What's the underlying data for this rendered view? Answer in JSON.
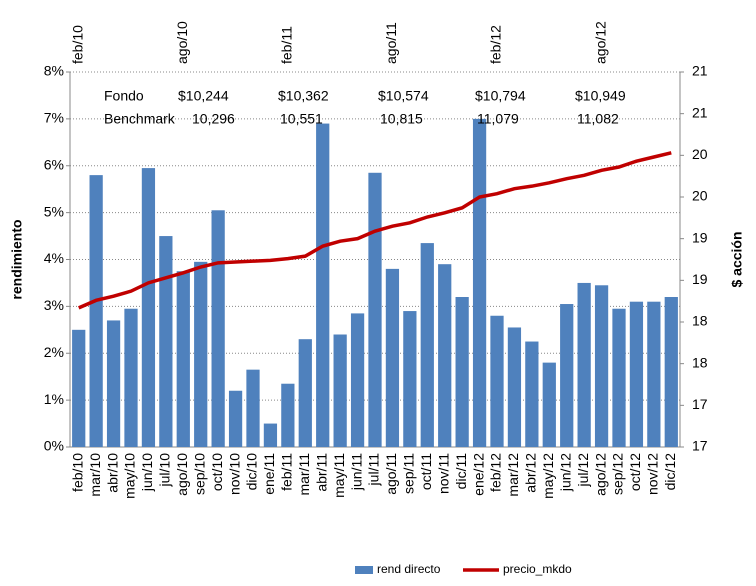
{
  "chart_data": {
    "type": "bar_line",
    "y_label": "rendimiento",
    "y2_label": "$ acción",
    "categories": [
      "feb/10",
      "mar/10",
      "abr/10",
      "may/10",
      "jun/10",
      "jul/10",
      "ago/10",
      "sep/10",
      "oct/10",
      "nov/10",
      "dic/10",
      "ene/11",
      "feb/11",
      "mar/11",
      "abr/11",
      "may/11",
      "jun/11",
      "jul/11",
      "ago/11",
      "sep/11",
      "oct/11",
      "nov/11",
      "dic/11",
      "ene/12",
      "feb/12",
      "mar/12",
      "abr/12",
      "may/12",
      "jun/12",
      "jul/12",
      "ago/12",
      "sep/12",
      "oct/12",
      "nov/12",
      "dic/12"
    ],
    "top_categories": [
      "feb/10",
      null,
      null,
      null,
      null,
      null,
      "ago/10",
      null,
      null,
      null,
      null,
      null,
      "feb/11",
      null,
      null,
      null,
      null,
      null,
      "ago/11",
      null,
      null,
      null,
      null,
      null,
      "feb/12",
      null,
      null,
      null,
      null,
      null,
      "ago/12",
      null,
      null,
      null,
      null
    ],
    "series": [
      {
        "name": "rend directo",
        "kind": "bar",
        "color": "#4f81bd",
        "values": [
          2.5,
          5.8,
          2.7,
          2.95,
          5.95,
          4.5,
          3.75,
          3.95,
          5.05,
          1.2,
          1.65,
          0.5,
          1.35,
          2.3,
          6.9,
          2.4,
          2.85,
          5.85,
          3.8,
          2.9,
          4.35,
          3.9,
          3.2,
          7.0,
          2.8,
          2.55,
          2.25,
          1.8,
          3.05,
          3.5,
          3.45,
          2.95,
          3.1,
          3.1,
          3.2
        ]
      },
      {
        "name": "precio_mkdo",
        "kind": "line",
        "axis": "y2",
        "color": "#c00000",
        "values": [
          18.17,
          18.26,
          18.31,
          18.37,
          18.47,
          18.53,
          18.59,
          18.66,
          18.71,
          18.72,
          18.73,
          18.74,
          18.76,
          18.79,
          18.91,
          18.97,
          19.0,
          19.09,
          19.15,
          19.19,
          19.26,
          19.31,
          19.37,
          19.5,
          19.54,
          19.6,
          19.63,
          19.67,
          19.72,
          19.76,
          19.82,
          19.86,
          19.93,
          19.98,
          20.03
        ]
      }
    ],
    "ylim": [
      0,
      8
    ],
    "yticks": [
      {
        "value": 0,
        "label": "0%"
      },
      {
        "value": 1,
        "label": "1%"
      },
      {
        "value": 2,
        "label": "2%"
      },
      {
        "value": 3,
        "label": "3%"
      },
      {
        "value": 4,
        "label": "4%"
      },
      {
        "value": 5,
        "label": "5%"
      },
      {
        "value": 6,
        "label": "6%"
      },
      {
        "value": 7,
        "label": "7%"
      },
      {
        "value": 8,
        "label": "8%"
      }
    ],
    "y2lim": [
      16.5,
      21
    ],
    "y2ticks": [
      {
        "value": 16.5,
        "label": "17"
      },
      17,
      {
        "value": 17.5,
        "label": "18"
      },
      18,
      {
        "value": 18.5,
        "label": "19"
      },
      19,
      {
        "value": 19.5,
        "label": "20"
      },
      20,
      {
        "value": 20.5,
        "label": "21"
      },
      21
    ],
    "grid": true,
    "legend": "bottom",
    "annotations": {
      "row_labels": [
        "Fondo",
        "Benchmark"
      ],
      "columns": [
        [
          "$10,244",
          "10,296"
        ],
        [
          "$10,362",
          "10,551"
        ],
        [
          "$10,574",
          "10,815"
        ],
        [
          "$10,794",
          "11,079"
        ],
        [
          "$10,949",
          "11,082"
        ]
      ]
    }
  }
}
